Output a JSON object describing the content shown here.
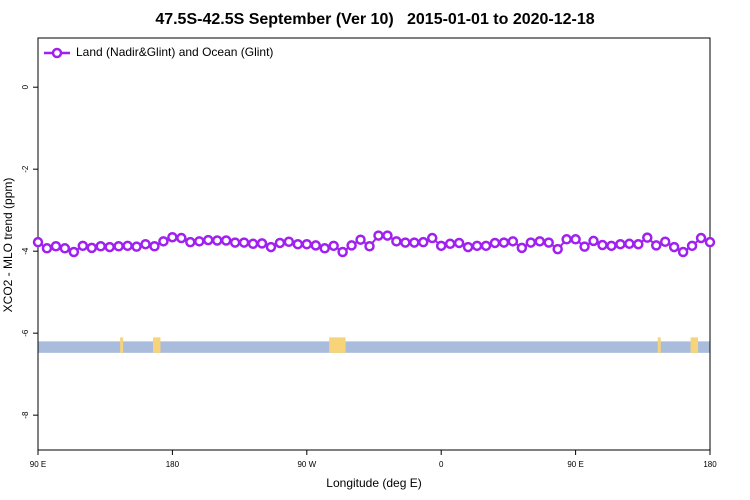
{
  "chart_data": {
    "type": "line",
    "title": "47.5S-42.5S September (Ver 10)   2015-01-01 to 2020-12-18",
    "x_label": "Longitude (deg E)",
    "y_label": "XCO2 - MLO trend (ppm)",
    "xlim": [
      90,
      540
    ],
    "ylim": [
      -8.85,
      1.2
    ],
    "xticks": [
      {
        "value": 90,
        "label": "90 E"
      },
      {
        "value": 180,
        "label": "180"
      },
      {
        "value": 270,
        "label": "90 W"
      },
      {
        "value": 360,
        "label": "0"
      },
      {
        "value": 450,
        "label": "90 E"
      },
      {
        "value": 540,
        "label": "180"
      }
    ],
    "yticks": [
      0,
      -2,
      -4,
      -6,
      -8
    ],
    "legend": "top-left",
    "ocean_band": {
      "y": [
        -6.48,
        -6.2
      ],
      "color": "#a9bcdc"
    },
    "land_patches": {
      "color": "#f7d47a",
      "x": [
        [
          145,
          147
        ],
        [
          167,
          172
        ],
        [
          285,
          296
        ],
        [
          505,
          507
        ],
        [
          527,
          532
        ]
      ]
    },
    "x": [
      90,
      96,
      102,
      108,
      114,
      120,
      126,
      132,
      138,
      144,
      150,
      156,
      162,
      168,
      174,
      180,
      186,
      192,
      198,
      204,
      210,
      216,
      222,
      228,
      234,
      240,
      246,
      252,
      258,
      264,
      270,
      276,
      282,
      288,
      294,
      300,
      306,
      312,
      318,
      324,
      330,
      336,
      342,
      348,
      354,
      360,
      366,
      372,
      378,
      384,
      390,
      396,
      402,
      408,
      414,
      420,
      426,
      432,
      438,
      444,
      450,
      456,
      462,
      468,
      474,
      480,
      486,
      492,
      498,
      504,
      510,
      516,
      522,
      528,
      534,
      540
    ],
    "series": [
      {
        "name": "Land (Nadir&Glint) and Ocean (Glint)",
        "color": "#a020f0",
        "values": [
          -3.78,
          -3.93,
          -3.88,
          -3.93,
          -4.02,
          -3.87,
          -3.92,
          -3.88,
          -3.9,
          -3.88,
          -3.87,
          -3.89,
          -3.83,
          -3.88,
          -3.76,
          -3.66,
          -3.68,
          -3.78,
          -3.76,
          -3.73,
          -3.74,
          -3.74,
          -3.79,
          -3.79,
          -3.82,
          -3.81,
          -3.9,
          -3.8,
          -3.77,
          -3.83,
          -3.83,
          -3.86,
          -3.93,
          -3.87,
          -4.02,
          -3.86,
          -3.72,
          -3.88,
          -3.62,
          -3.62,
          -3.76,
          -3.79,
          -3.79,
          -3.78,
          -3.68,
          -3.87,
          -3.82,
          -3.8,
          -3.9,
          -3.87,
          -3.87,
          -3.8,
          -3.79,
          -3.76,
          -3.92,
          -3.79,
          -3.76,
          -3.79,
          -3.95,
          -3.71,
          -3.71,
          -3.89,
          -3.75,
          -3.85,
          -3.87,
          -3.83,
          -3.82,
          -3.83,
          -3.67,
          -3.86,
          -3.77,
          -3.9,
          -4.02,
          -3.87,
          -3.68,
          -3.78
        ]
      }
    ]
  }
}
